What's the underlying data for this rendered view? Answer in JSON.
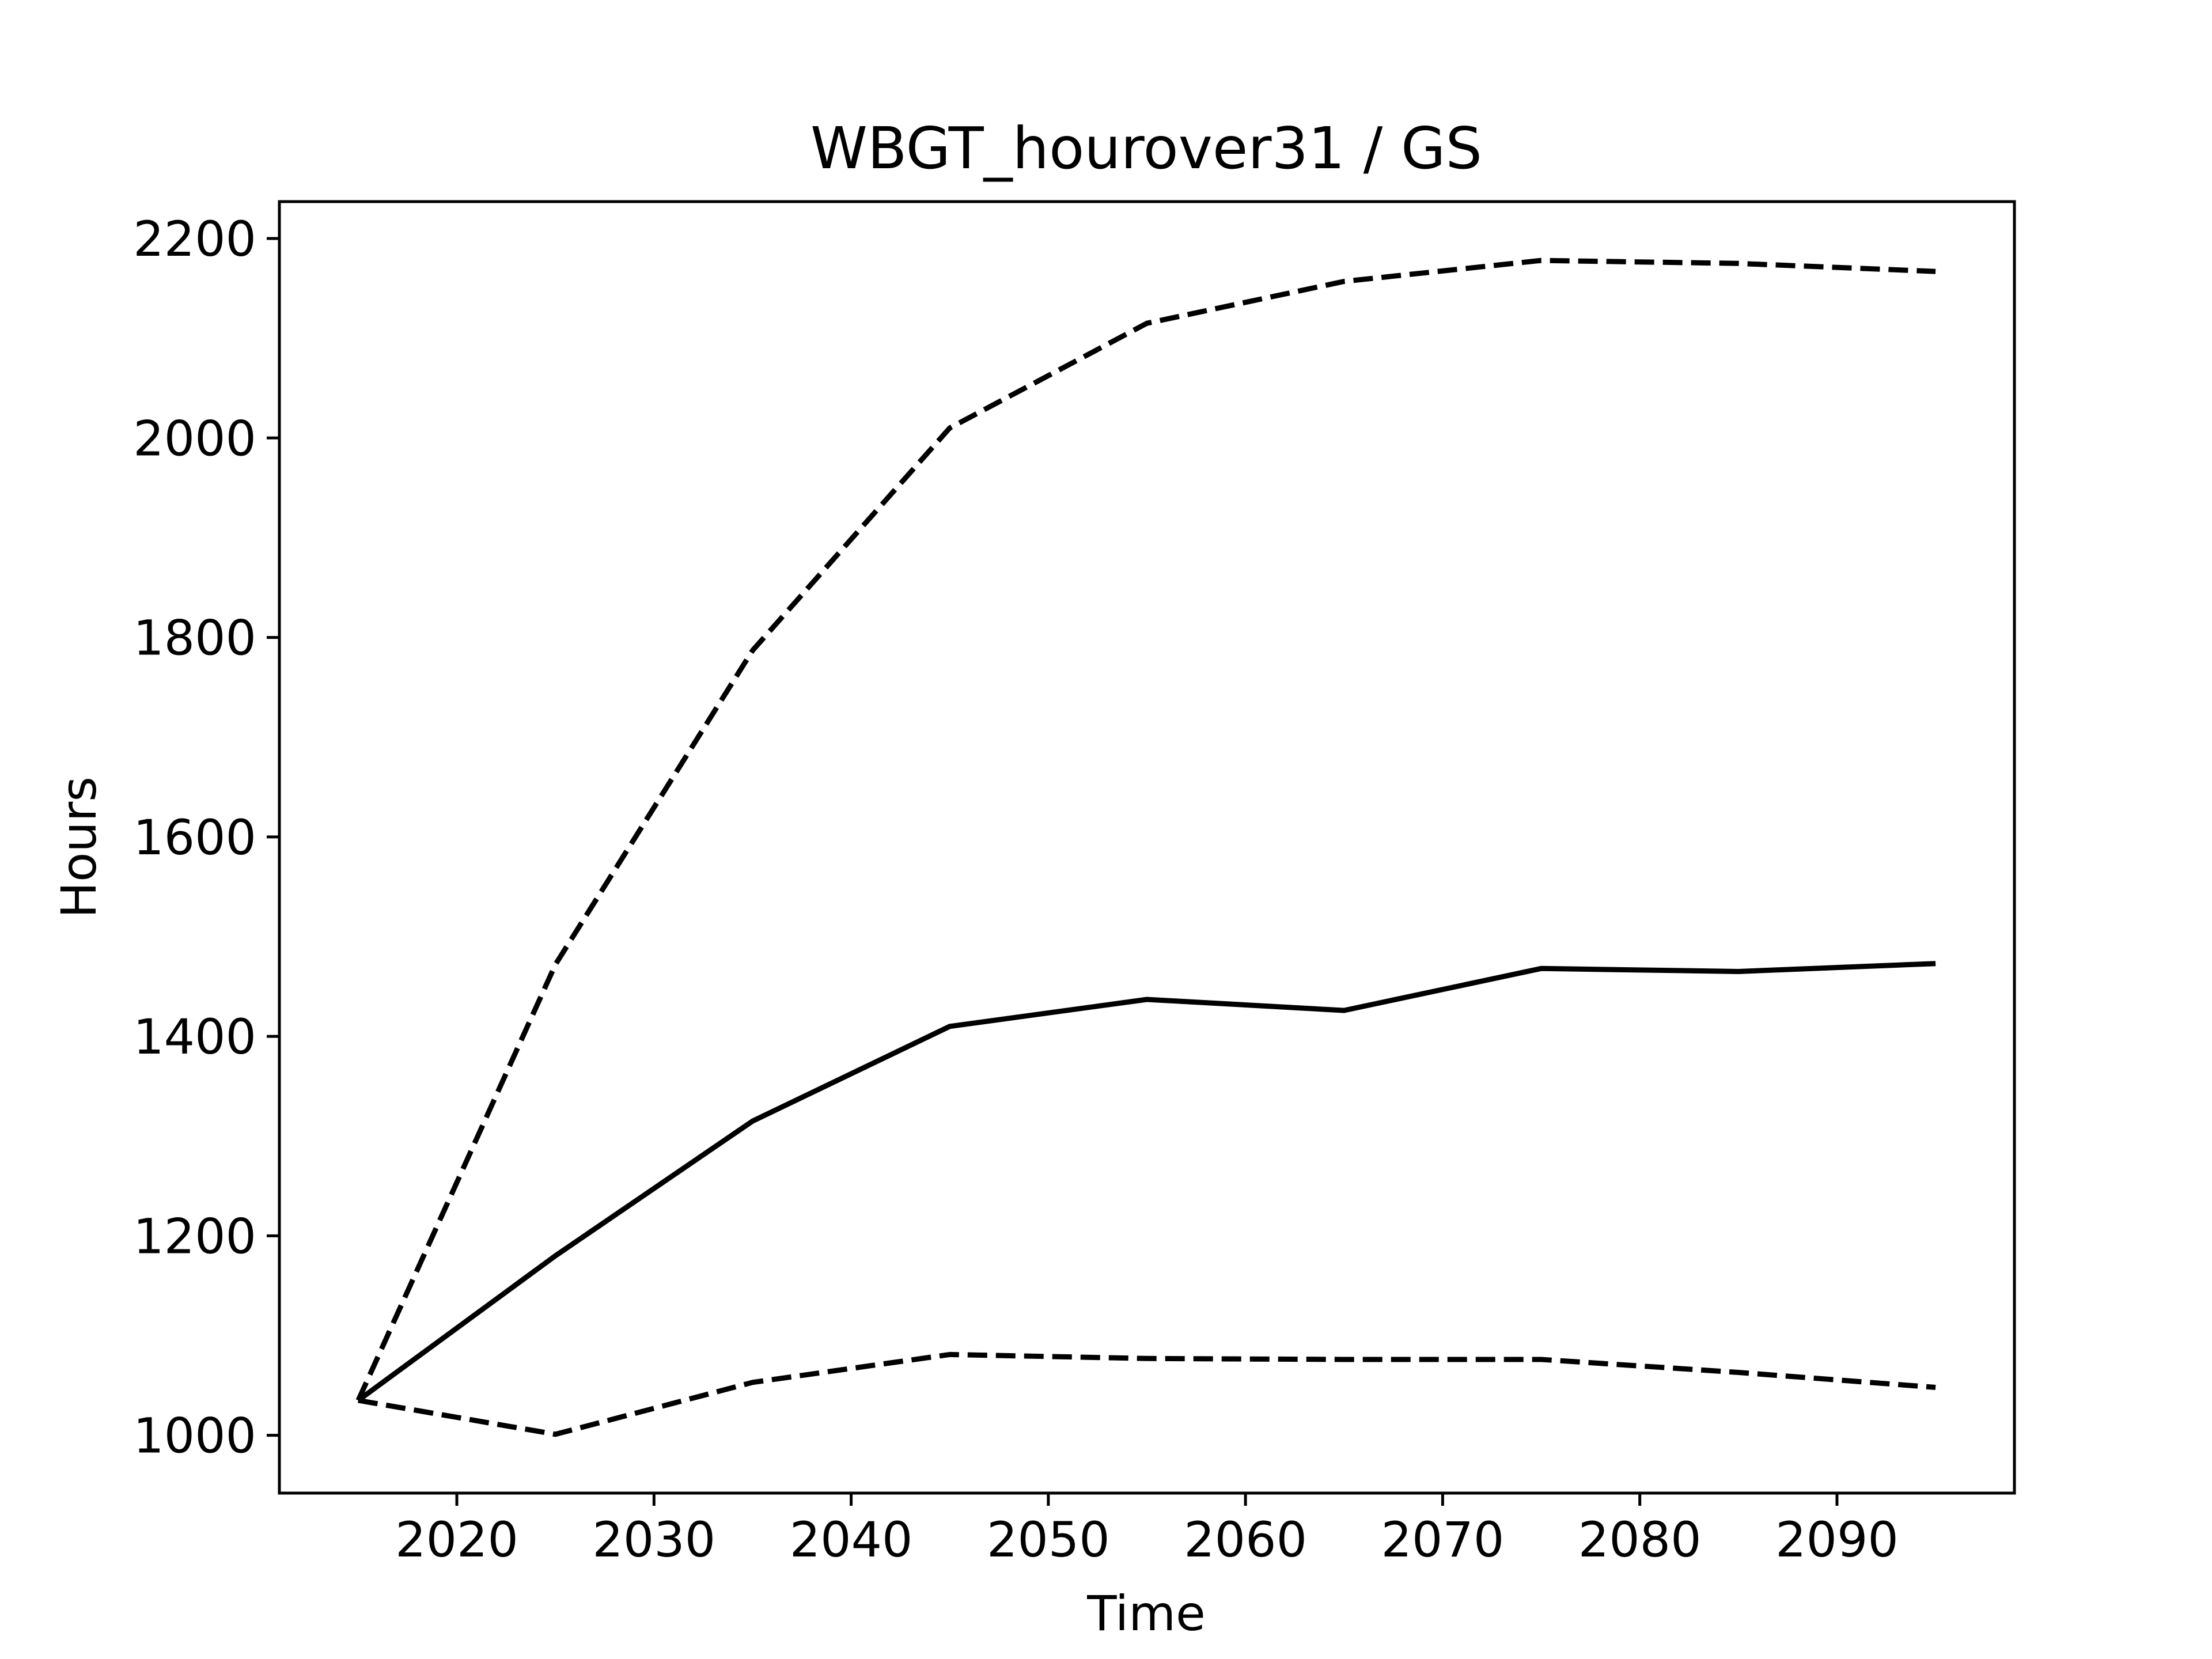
{
  "chart_data": {
    "type": "line",
    "title": "WBGT_hourover31 / GS",
    "xlabel": "Time",
    "ylabel": "Hours",
    "xlim": [
      2011,
      2099
    ],
    "ylim": [
      942,
      2237
    ],
    "x_ticks": [
      2020,
      2030,
      2040,
      2050,
      2060,
      2070,
      2080,
      2090
    ],
    "y_ticks": [
      1000,
      1200,
      1400,
      1600,
      1800,
      2000,
      2200
    ],
    "grid": false,
    "legend": "none",
    "x": [
      2015,
      2025,
      2035,
      2045,
      2055,
      2065,
      2075,
      2085,
      2095
    ],
    "series": [
      {
        "style": "dashed",
        "color": "#000000",
        "values": [
          1035,
          1472,
          1787,
          2010,
          2115,
          2157,
          2178,
          2175,
          2167
        ]
      },
      {
        "style": "solid",
        "color": "#000000",
        "values": [
          1035,
          1180,
          1315,
          1410,
          1437,
          1426,
          1468,
          1465,
          1473
        ]
      },
      {
        "style": "dashed",
        "color": "#000000",
        "values": [
          1035,
          1001,
          1053,
          1081,
          1077,
          1076,
          1076,
          1063,
          1048
        ]
      }
    ]
  }
}
